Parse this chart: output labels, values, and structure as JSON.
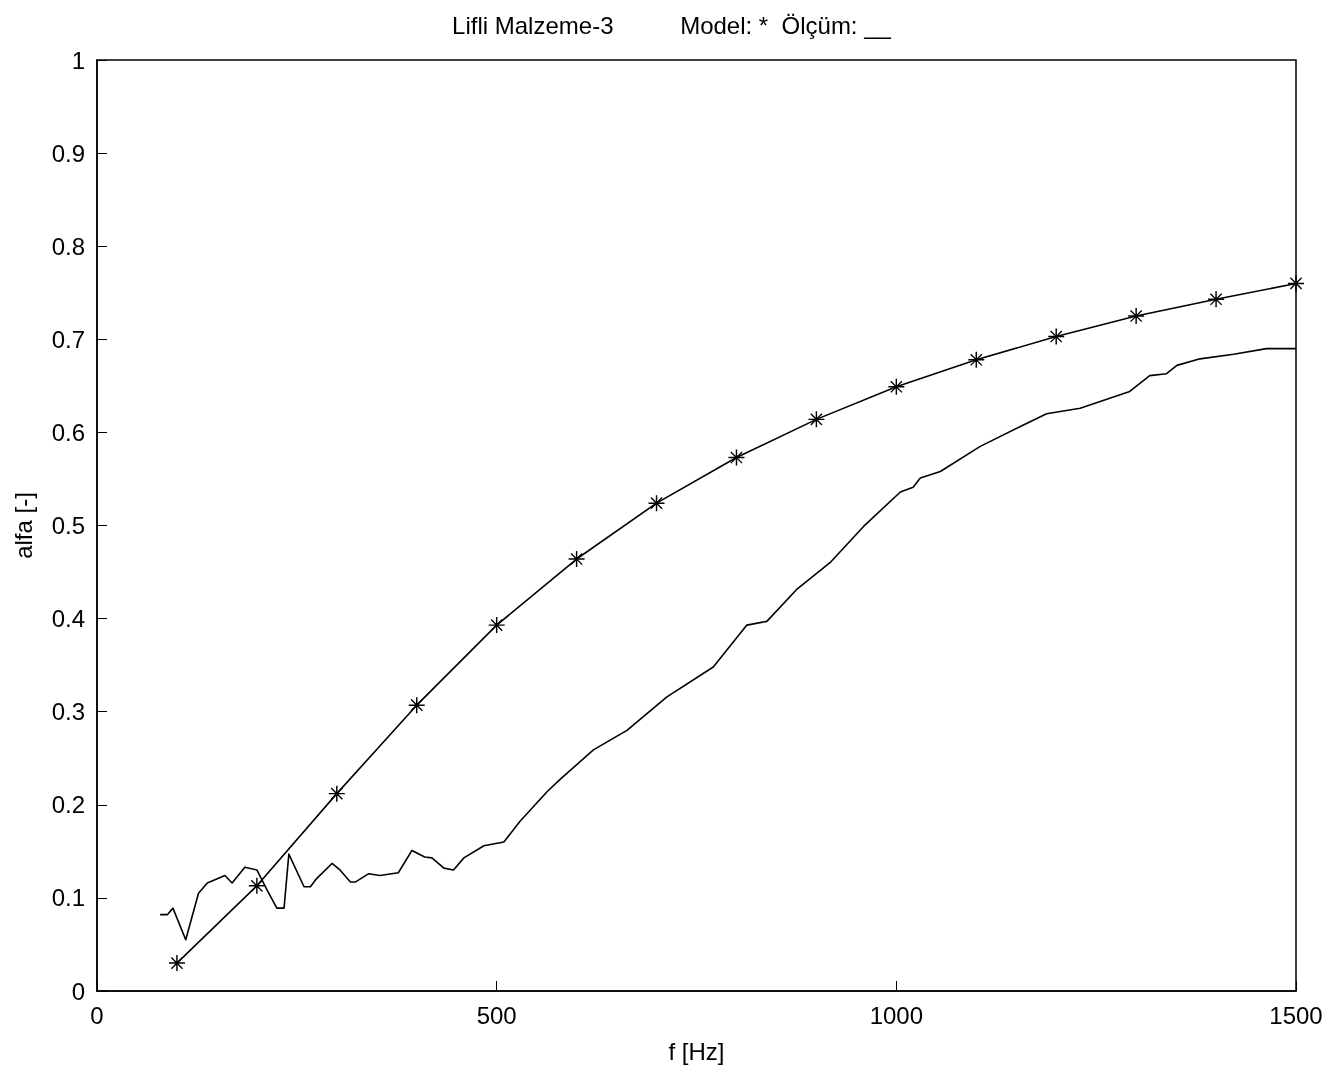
{
  "chart_data": {
    "type": "line",
    "title": "Lifli Malzeme-3          Model: *  Ölçüm: __",
    "xlabel": "f [Hz]",
    "ylabel": "alfa [-]",
    "xlim": [
      0,
      1500
    ],
    "xticks": [
      0,
      500,
      1000,
      1500
    ],
    "ylim": [
      0,
      1
    ],
    "yticks": [
      0,
      0.1,
      0.2,
      0.3,
      0.4,
      0.5,
      0.6,
      0.7,
      0.8,
      0.9,
      1
    ],
    "grid": false,
    "line_style": "solid",
    "series": [
      {
        "color": "#000000",
        "marker": "star",
        "x": [
          100,
          200,
          300,
          400,
          500,
          600,
          700,
          800,
          900,
          1000,
          1100,
          1200,
          1300,
          1400,
          1500
        ],
        "values": [
          0.03,
          0.113,
          0.212,
          0.307,
          0.393,
          0.464,
          0.524,
          0.573,
          0.614,
          0.649,
          0.678,
          0.703,
          0.725,
          0.743,
          0.76
        ]
      },
      {
        "color": "#000000",
        "marker": "none",
        "x": [
          79,
          88,
          95,
          111,
          127,
          138,
          160,
          169,
          185,
          200,
          213,
          225,
          234,
          240,
          259,
          267,
          275,
          294,
          304,
          317,
          323,
          340,
          354,
          377,
          394,
          410,
          419,
          434,
          446,
          459,
          484,
          509,
          529,
          563,
          579,
          621,
          663,
          713,
          771,
          813,
          838,
          875,
          917,
          959,
          1005,
          1021,
          1030,
          1055,
          1105,
          1159,
          1188,
          1230,
          1292,
          1317,
          1338,
          1351,
          1380,
          1422,
          1463,
          1500
        ],
        "values": [
          0.082,
          0.082,
          0.089,
          0.055,
          0.105,
          0.116,
          0.124,
          0.116,
          0.133,
          0.13,
          0.108,
          0.089,
          0.089,
          0.147,
          0.112,
          0.112,
          0.121,
          0.137,
          0.13,
          0.117,
          0.117,
          0.126,
          0.124,
          0.127,
          0.151,
          0.144,
          0.143,
          0.132,
          0.13,
          0.143,
          0.156,
          0.16,
          0.182,
          0.214,
          0.227,
          0.259,
          0.28,
          0.316,
          0.348,
          0.393,
          0.397,
          0.431,
          0.46,
          0.499,
          0.536,
          0.541,
          0.551,
          0.558,
          0.585,
          0.608,
          0.62,
          0.626,
          0.644,
          0.661,
          0.663,
          0.672,
          0.679,
          0.684,
          0.69,
          0.69
        ]
      }
    ]
  }
}
